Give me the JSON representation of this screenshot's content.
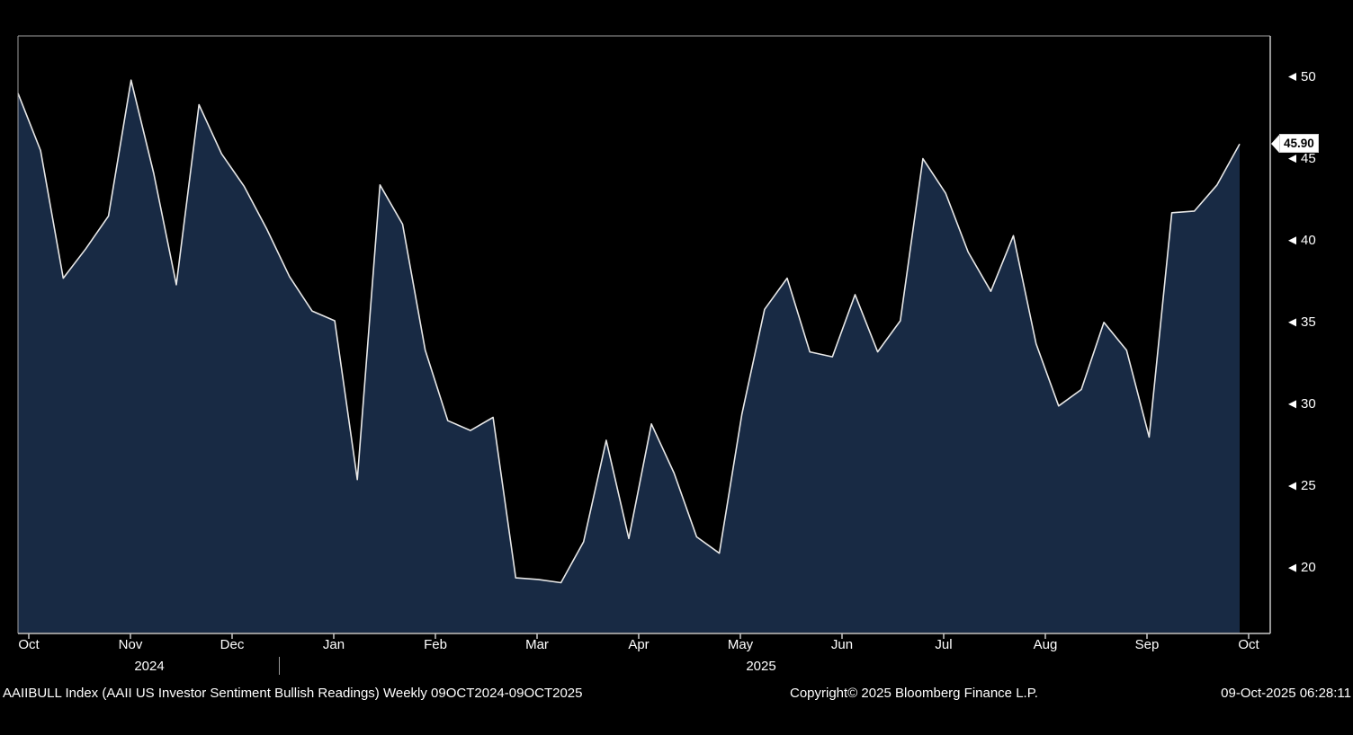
{
  "chart_data": {
    "type": "area",
    "title": "AAIIBULL Index (AAII US Investor Sentiment Bullish Readings)",
    "frequency": "Weekly",
    "period": "09OCT2024-09OCT2025",
    "x_tick_labels": [
      "Oct",
      "Nov",
      "Dec",
      "Jan",
      "Feb",
      "Mar",
      "Apr",
      "May",
      "Jun",
      "Jul",
      "Aug",
      "Sep",
      "Oct"
    ],
    "year_labels": [
      "2024",
      "2025"
    ],
    "y_ticks": [
      20,
      25,
      30,
      35,
      40,
      45,
      50
    ],
    "ylim": [
      16,
      52.5
    ],
    "values": [
      49.0,
      45.5,
      37.7,
      39.5,
      41.5,
      49.8,
      44.1,
      37.3,
      48.3,
      45.3,
      43.3,
      40.7,
      37.8,
      35.7,
      35.1,
      25.4,
      43.4,
      41.0,
      33.3,
      29.0,
      28.4,
      29.2,
      19.4,
      19.3,
      19.1,
      21.6,
      27.8,
      21.8,
      28.8,
      25.8,
      21.9,
      20.9,
      29.4,
      35.8,
      37.7,
      33.2,
      32.9,
      36.7,
      33.2,
      35.1,
      45.0,
      42.9,
      39.3,
      36.9,
      40.3,
      33.7,
      29.9,
      30.9,
      35.0,
      33.3,
      28.0,
      41.7,
      41.8,
      43.4,
      45.9
    ],
    "last_value": 45.9,
    "last_value_label": "45.90",
    "legend_position": "none",
    "grid": false,
    "colors": {
      "background": "#000000",
      "area_fill": "#182a44",
      "line": "#e8e8e8",
      "axis": "#c8c8c8",
      "tick_text": "#ffffff"
    }
  },
  "footer": {
    "description": "AAIIBULL Index (AAII US Investor Sentiment Bullish Readings) Weekly 09OCT2024-09OCT2025",
    "copyright": "Copyright© 2025 Bloomberg Finance L.P.",
    "timestamp": "09-Oct-2025 06:28:11"
  }
}
